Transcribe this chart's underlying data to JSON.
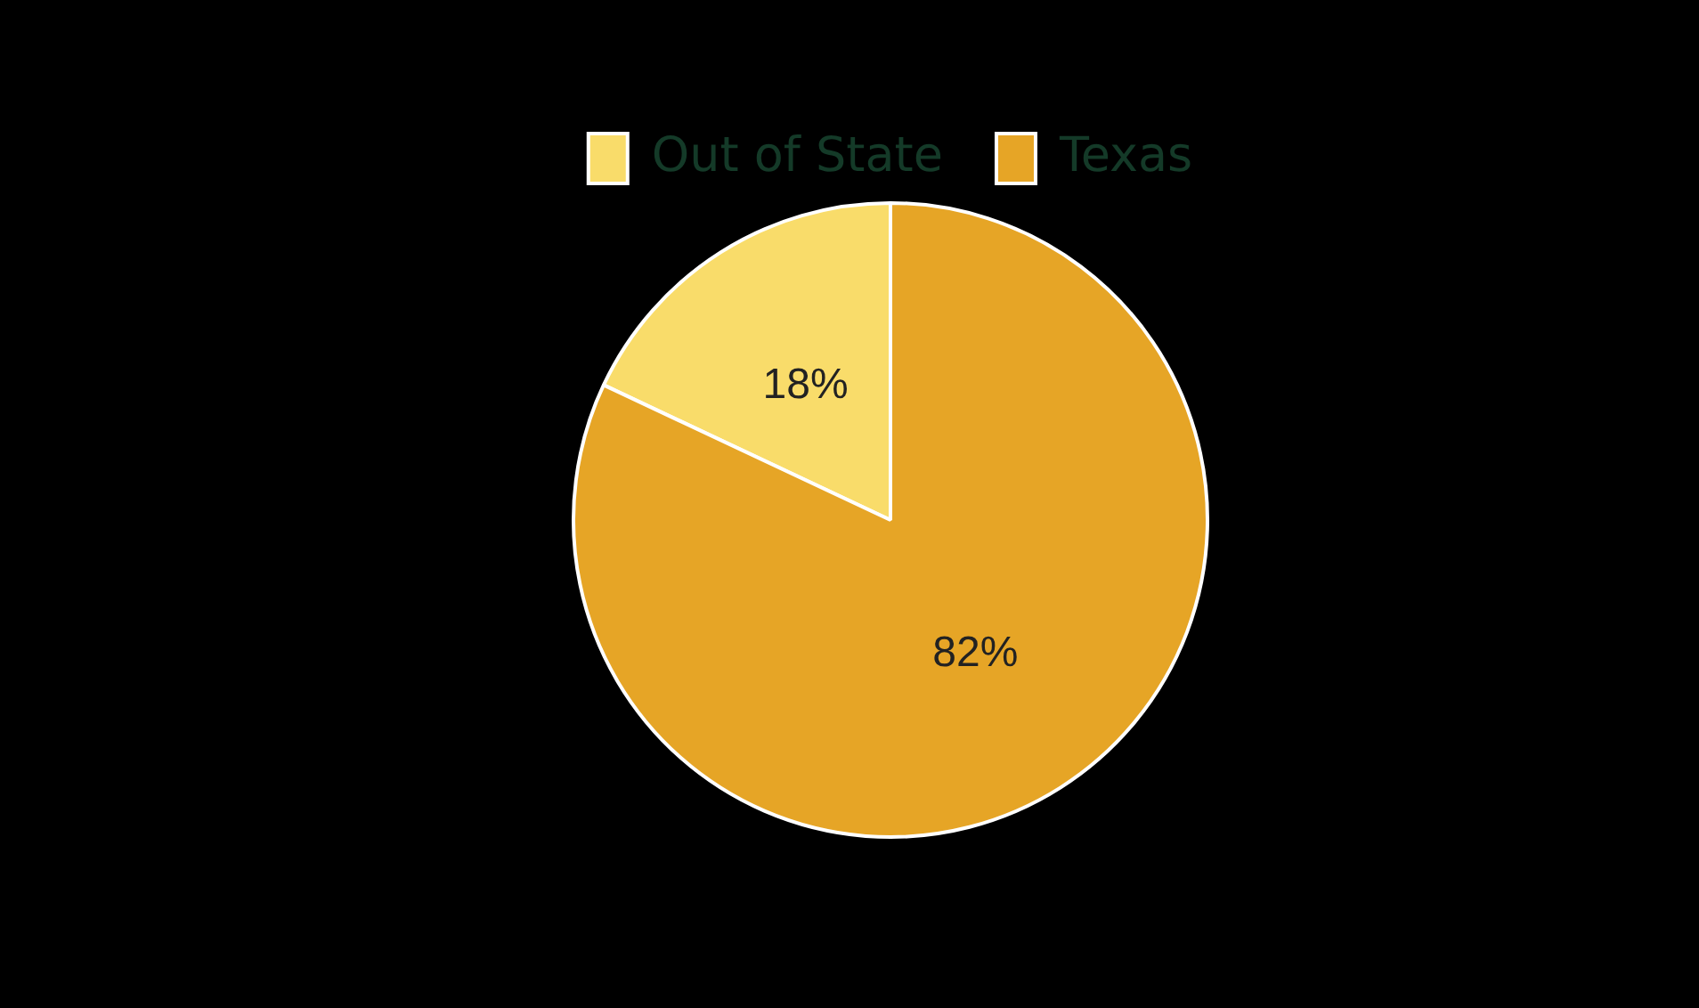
{
  "chart_data": {
    "type": "pie",
    "categories": [
      "Out of State",
      "Texas"
    ],
    "values": [
      18,
      82
    ],
    "colors": [
      "#f9dc6a",
      "#e6a526"
    ],
    "legend": "top",
    "value_labels": [
      "18%",
      "82%"
    ]
  }
}
